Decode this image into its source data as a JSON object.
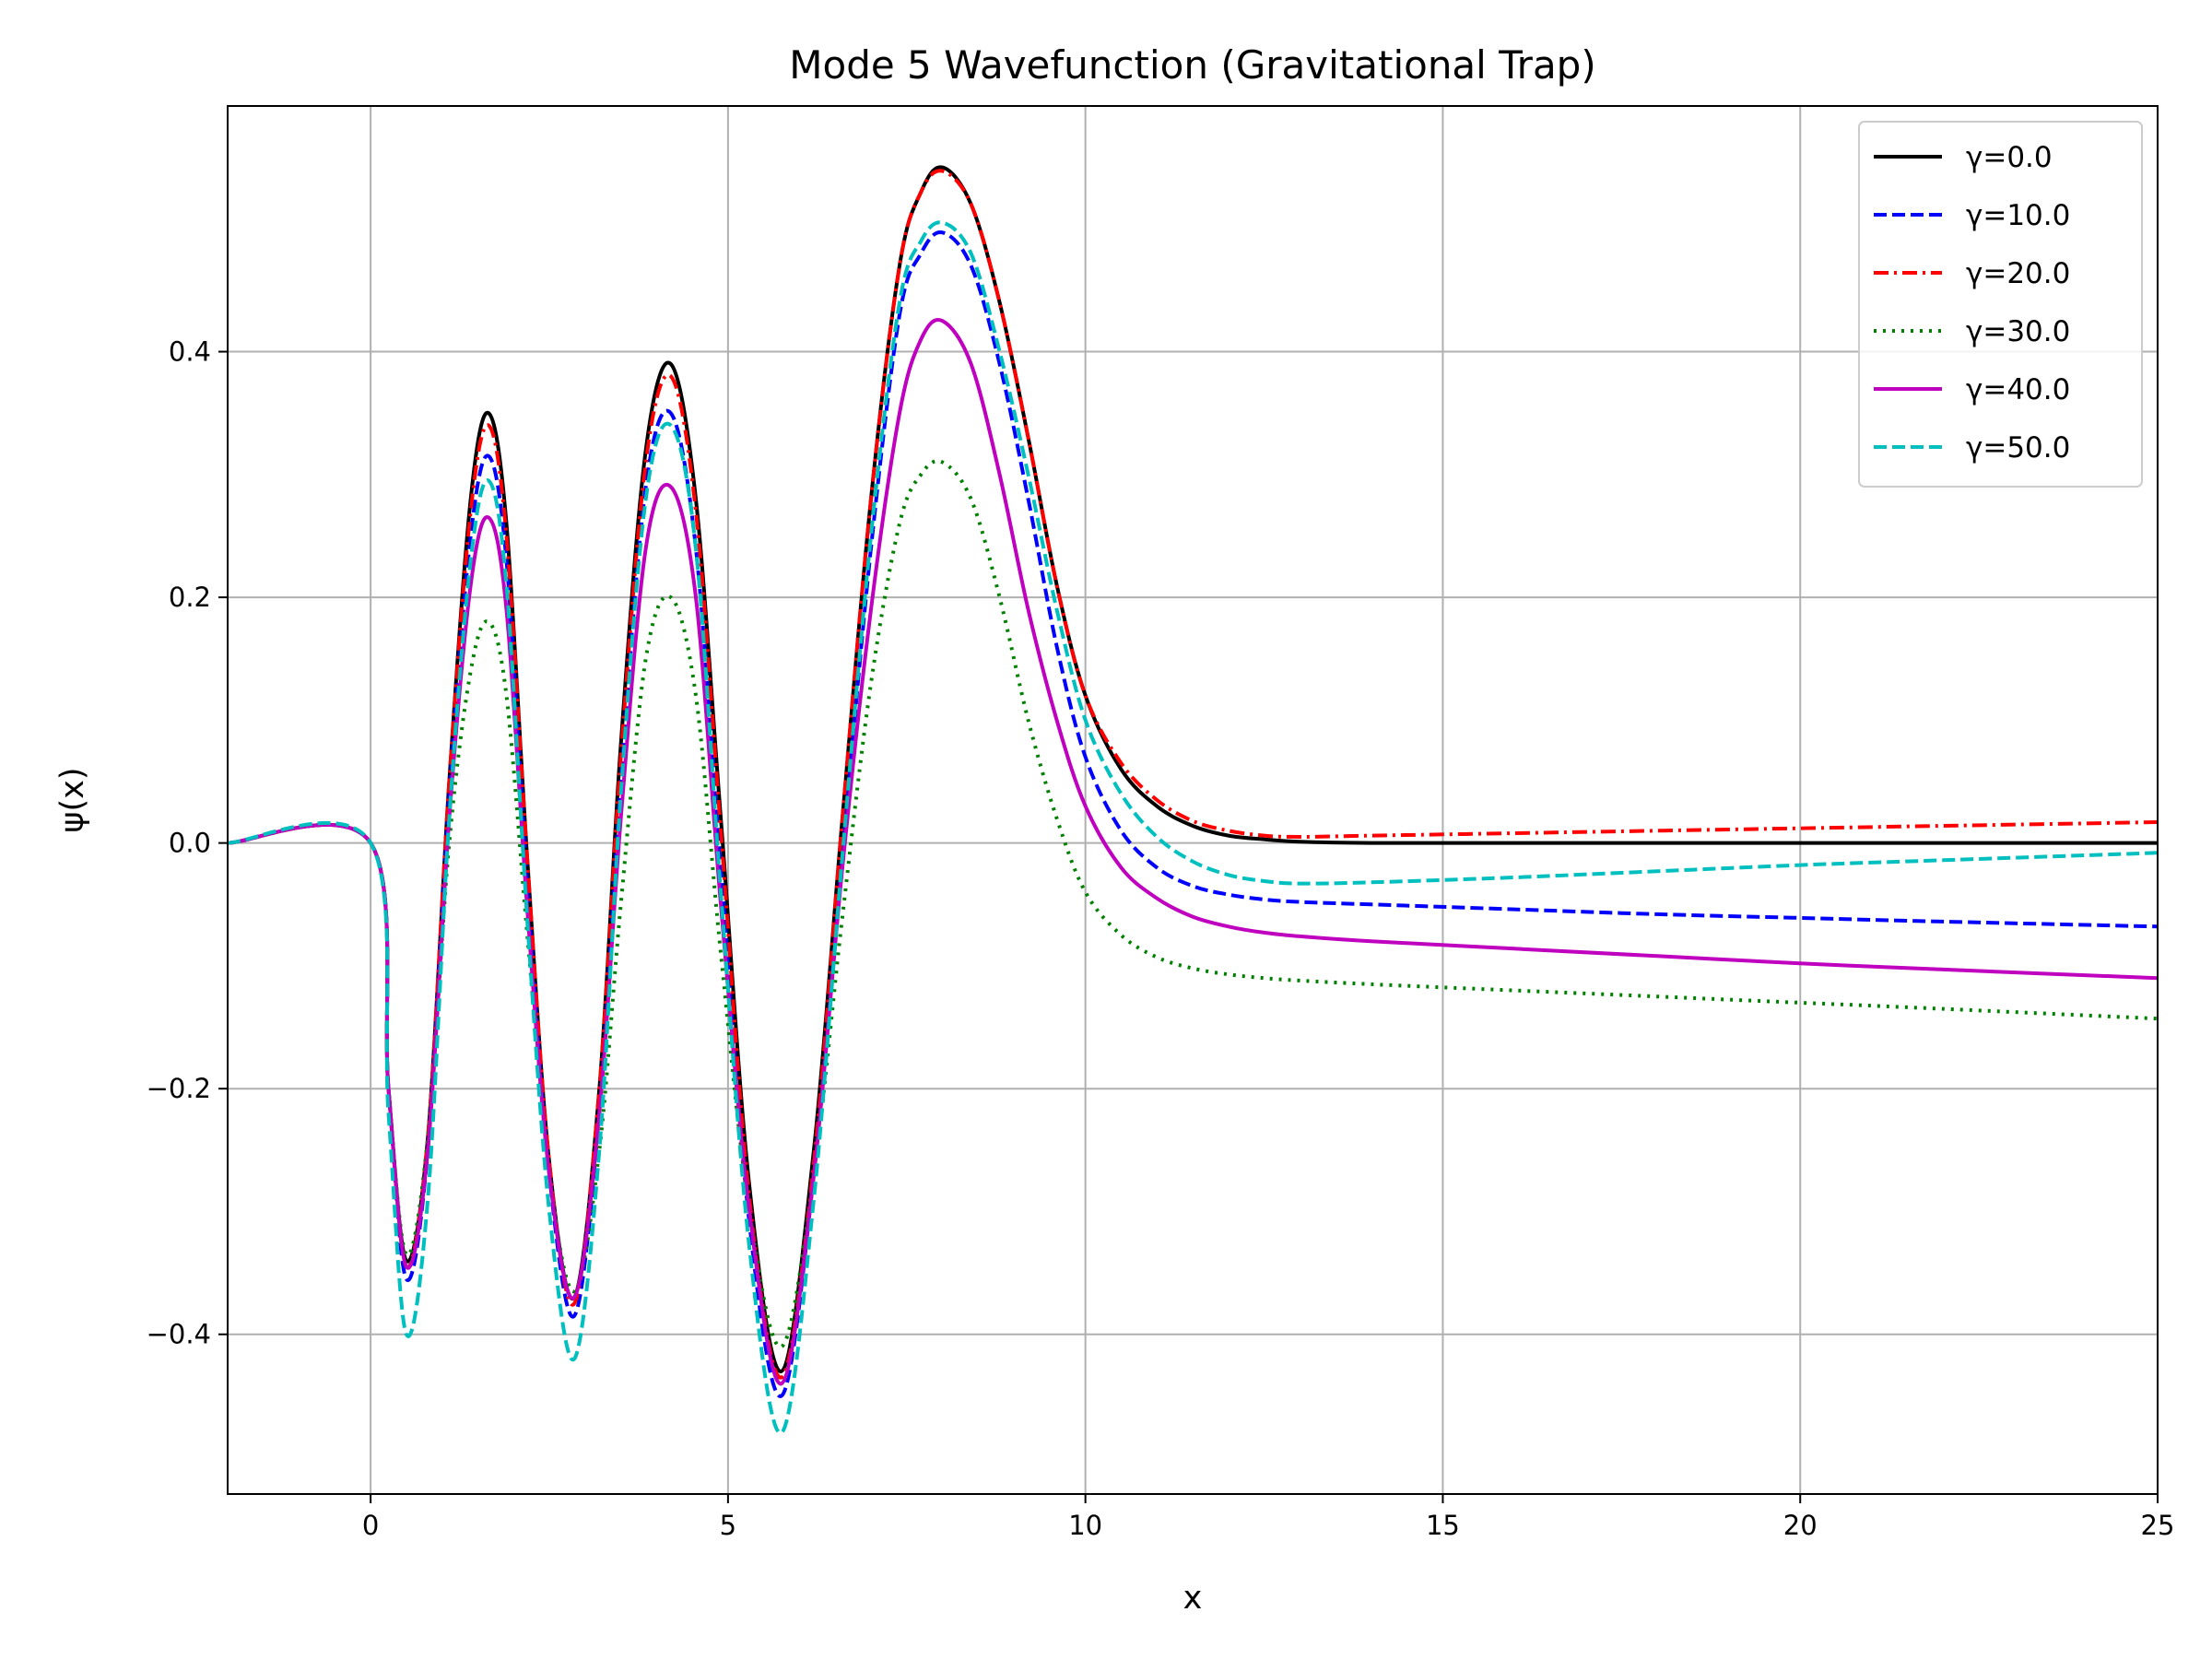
{
  "chart_data": {
    "type": "line",
    "title": "Mode 5 Wavefunction (Gravitational Trap)",
    "xlabel": "x",
    "ylabel": "ψ(x)",
    "xlim": [
      -2,
      25
    ],
    "ylim": [
      -0.53,
      0.6
    ],
    "xticks": [
      0,
      5,
      10,
      15,
      20,
      25
    ],
    "xtick_labels": [
      "0",
      "5",
      "10",
      "15",
      "20",
      "25"
    ],
    "yticks": [
      -0.4,
      -0.2,
      0.0,
      0.2,
      0.4
    ],
    "ytick_labels": [
      "−0.4",
      "−0.2",
      "0.0",
      "0.2",
      "0.4"
    ],
    "grid": true,
    "legend_position": "top-right",
    "series": [
      {
        "name": "γ=0.0",
        "color": "#000000",
        "style": "solid",
        "x": [
          -2,
          0,
          0.25,
          0.5,
          0.8,
          1.1,
          1.4,
          1.65,
          1.9,
          2.2,
          2.5,
          2.85,
          3.2,
          3.5,
          3.85,
          4.2,
          4.55,
          4.9,
          5.3,
          5.75,
          6.2,
          6.6,
          7.0,
          7.4,
          7.7,
          8.0,
          8.4,
          8.8,
          9.2,
          9.6,
          10.0,
          10.5,
          11.0,
          11.5,
          12.0,
          12.5,
          13.0,
          14.0,
          16.0,
          18.0,
          20.0,
          22.0,
          25.0
        ],
        "y": [
          0,
          0,
          -0.2,
          -0.34,
          -0.24,
          0.05,
          0.28,
          0.35,
          0.26,
          -0.02,
          -0.26,
          -0.37,
          -0.2,
          0.08,
          0.32,
          0.39,
          0.28,
          0.02,
          -0.28,
          -0.43,
          -0.25,
          0.02,
          0.28,
          0.47,
          0.53,
          0.55,
          0.52,
          0.44,
          0.33,
          0.21,
          0.12,
          0.06,
          0.03,
          0.014,
          0.006,
          0.003,
          0.001,
          0,
          0,
          0,
          0,
          0,
          0
        ]
      },
      {
        "name": "γ=10.0",
        "color": "#0000ff",
        "style": "dashed",
        "x": [
          -2,
          0,
          0.25,
          0.5,
          0.8,
          1.1,
          1.4,
          1.65,
          1.9,
          2.2,
          2.5,
          2.85,
          3.2,
          3.5,
          3.85,
          4.2,
          4.55,
          4.9,
          5.3,
          5.75,
          6.2,
          6.6,
          7.0,
          7.4,
          7.7,
          8.0,
          8.4,
          8.8,
          9.2,
          9.6,
          10.0,
          10.5,
          11.0,
          11.5,
          12.0,
          12.5,
          13.0,
          14.0,
          16.0,
          18.0,
          20.0,
          22.0,
          25.0
        ],
        "y": [
          0,
          0,
          -0.2,
          -0.355,
          -0.25,
          0.04,
          0.25,
          0.315,
          0.23,
          -0.04,
          -0.27,
          -0.385,
          -0.22,
          0.05,
          0.29,
          0.35,
          0.24,
          -0.02,
          -0.31,
          -0.45,
          -0.27,
          -0.01,
          0.24,
          0.43,
          0.48,
          0.497,
          0.47,
          0.39,
          0.28,
          0.16,
          0.07,
          0.01,
          -0.02,
          -0.035,
          -0.042,
          -0.046,
          -0.048,
          -0.05,
          -0.054,
          -0.058,
          -0.061,
          -0.064,
          -0.068
        ]
      },
      {
        "name": "γ=20.0",
        "color": "#ff0000",
        "style": "dashdot",
        "x": [
          -2,
          0,
          0.25,
          0.5,
          0.8,
          1.1,
          1.4,
          1.65,
          1.9,
          2.2,
          2.5,
          2.85,
          3.2,
          3.5,
          3.85,
          4.2,
          4.55,
          4.9,
          5.3,
          5.75,
          6.2,
          6.6,
          7.0,
          7.4,
          7.7,
          8.0,
          8.4,
          8.8,
          9.2,
          9.6,
          10.0,
          10.5,
          11.0,
          11.5,
          12.0,
          12.5,
          13.0,
          14.0,
          16.0,
          18.0,
          20.0,
          22.0,
          25.0
        ],
        "y": [
          0,
          0,
          -0.2,
          -0.345,
          -0.24,
          0.05,
          0.27,
          0.34,
          0.25,
          -0.02,
          -0.26,
          -0.375,
          -0.2,
          0.07,
          0.31,
          0.38,
          0.27,
          0.01,
          -0.29,
          -0.435,
          -0.26,
          0.02,
          0.28,
          0.47,
          0.53,
          0.547,
          0.52,
          0.44,
          0.33,
          0.21,
          0.12,
          0.065,
          0.035,
          0.018,
          0.01,
          0.006,
          0.005,
          0.006,
          0.008,
          0.01,
          0.012,
          0.014,
          0.017
        ]
      },
      {
        "name": "γ=30.0",
        "color": "#008000",
        "style": "dotted",
        "x": [
          -2,
          0,
          0.25,
          0.5,
          0.8,
          1.1,
          1.4,
          1.65,
          1.9,
          2.2,
          2.5,
          2.85,
          3.2,
          3.5,
          3.85,
          4.2,
          4.55,
          4.9,
          5.3,
          5.75,
          6.2,
          6.6,
          7.0,
          7.4,
          7.7,
          8.0,
          8.4,
          8.8,
          9.2,
          9.6,
          10.0,
          10.5,
          11.0,
          11.5,
          12.0,
          12.5,
          13.0,
          14.0,
          16.0,
          18.0,
          20.0,
          22.0,
          25.0
        ],
        "y": [
          0,
          0,
          -0.2,
          -0.335,
          -0.24,
          0.0,
          0.14,
          0.18,
          0.12,
          -0.08,
          -0.27,
          -0.365,
          -0.25,
          -0.05,
          0.15,
          0.2,
          0.12,
          -0.09,
          -0.3,
          -0.41,
          -0.27,
          -0.06,
          0.13,
          0.26,
          0.3,
          0.31,
          0.28,
          0.2,
          0.1,
          0.02,
          -0.04,
          -0.075,
          -0.093,
          -0.102,
          -0.107,
          -0.11,
          -0.112,
          -0.115,
          -0.12,
          -0.125,
          -0.13,
          -0.135,
          -0.143
        ]
      },
      {
        "name": "γ=40.0",
        "color": "#bf00bf",
        "style": "solid",
        "x": [
          -2,
          0,
          0.25,
          0.5,
          0.8,
          1.1,
          1.4,
          1.65,
          1.9,
          2.2,
          2.5,
          2.85,
          3.2,
          3.5,
          3.85,
          4.2,
          4.55,
          4.9,
          5.3,
          5.75,
          6.2,
          6.6,
          7.0,
          7.4,
          7.7,
          8.0,
          8.4,
          8.8,
          9.2,
          9.6,
          10.0,
          10.5,
          11.0,
          11.5,
          12.0,
          12.5,
          13.0,
          14.0,
          16.0,
          18.0,
          20.0,
          22.0,
          25.0
        ],
        "y": [
          0,
          0,
          -0.2,
          -0.345,
          -0.25,
          0.02,
          0.21,
          0.265,
          0.19,
          -0.06,
          -0.27,
          -0.37,
          -0.22,
          0.02,
          0.24,
          0.29,
          0.2,
          -0.05,
          -0.3,
          -0.44,
          -0.27,
          -0.02,
          0.19,
          0.35,
          0.41,
          0.425,
          0.39,
          0.3,
          0.19,
          0.1,
          0.03,
          -0.02,
          -0.045,
          -0.06,
          -0.068,
          -0.073,
          -0.076,
          -0.08,
          -0.086,
          -0.092,
          -0.098,
          -0.103,
          -0.11
        ]
      },
      {
        "name": "γ=50.0",
        "color": "#00bfbf",
        "style": "dashed",
        "x": [
          -2,
          0,
          0.25,
          0.5,
          0.8,
          1.1,
          1.4,
          1.65,
          1.9,
          2.2,
          2.5,
          2.85,
          3.2,
          3.5,
          3.85,
          4.2,
          4.55,
          4.9,
          5.3,
          5.75,
          6.2,
          6.6,
          7.0,
          7.4,
          7.7,
          8.0,
          8.4,
          8.8,
          9.2,
          9.6,
          10.0,
          10.5,
          11.0,
          11.5,
          12.0,
          12.5,
          13.0,
          14.0,
          16.0,
          18.0,
          20.0,
          22.0,
          25.0
        ],
        "y": [
          0,
          0,
          -0.22,
          -0.4,
          -0.29,
          0.02,
          0.23,
          0.295,
          0.21,
          -0.07,
          -0.3,
          -0.42,
          -0.25,
          0.04,
          0.28,
          0.34,
          0.24,
          -0.04,
          -0.33,
          -0.48,
          -0.29,
          -0.01,
          0.25,
          0.44,
          0.49,
          0.505,
          0.48,
          0.4,
          0.3,
          0.19,
          0.1,
          0.04,
          0.005,
          -0.015,
          -0.026,
          -0.031,
          -0.033,
          -0.032,
          -0.028,
          -0.023,
          -0.018,
          -0.014,
          -0.008
        ]
      }
    ]
  }
}
